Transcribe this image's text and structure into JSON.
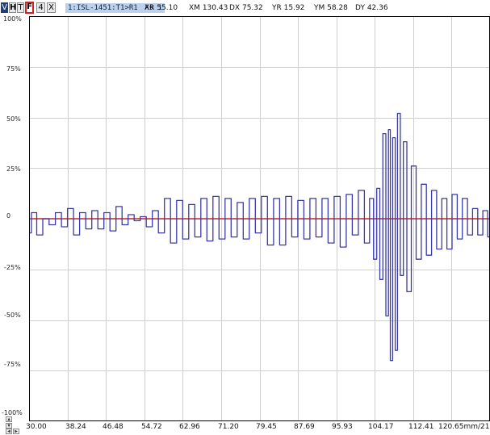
{
  "toolbar": {
    "btn_v": "V",
    "btn_h": "H",
    "btn_t": "T",
    "btn_f": "F",
    "btn_4": "4",
    "btn_x": "X",
    "channel_label": "1:ISL-1451:T1>R1",
    "channel_suffix": "As 1",
    "readouts": [
      {
        "label": "XR",
        "value": "55.10"
      },
      {
        "label": "XM",
        "value": "130.43"
      },
      {
        "label": "DX",
        "value": "75.32"
      },
      {
        "label": "YR",
        "value": "15.92"
      },
      {
        "label": "YM",
        "value": "58.28"
      },
      {
        "label": "DY",
        "value": "42.36"
      }
    ]
  },
  "colors": {
    "trace": "#3a3aa8",
    "baseline": "#d02828",
    "grid": "#cfcfcf",
    "frame": "#000000"
  },
  "nav_icons": [
    "arrow-up-icon",
    "arrow-down-icon",
    "arrow-left-icon",
    "arrow-right-icon"
  ],
  "chart_data": {
    "type": "line",
    "y_tick_labels": [
      "100%",
      "75%",
      "50%",
      "25%",
      "0",
      "-25%",
      "-50%",
      "-75%",
      "-100%"
    ],
    "x_tick_labels": [
      "30.00",
      "38.24",
      "46.48",
      "54.72",
      "62.96",
      "71.20",
      "79.45",
      "87.69",
      "95.93",
      "104.17",
      "112.41",
      "120.65mm/21"
    ],
    "xlim": [
      30.0,
      128.89
    ],
    "ylim": [
      -100,
      100
    ],
    "grid": true,
    "baseline": 0,
    "series": [
      {
        "x": [
          30.0,
          31.0,
          32.3,
          33.6,
          35.0,
          36.3,
          37.6,
          38.9,
          40.2,
          41.5,
          42.8,
          44.1,
          45.4,
          46.7,
          48.0,
          49.3,
          50.6,
          51.9,
          53.2,
          54.5,
          55.8,
          57.1,
          58.4,
          59.7,
          61.0,
          62.3,
          63.6,
          64.9,
          66.2,
          67.5,
          68.8,
          70.1,
          71.4,
          72.7,
          74.0,
          75.3,
          76.6,
          77.9,
          79.2,
          80.5,
          81.8,
          83.1,
          84.4,
          85.7,
          87.0,
          88.3,
          89.6,
          90.9,
          92.2,
          93.5,
          94.8,
          96.1,
          97.4,
          98.7,
          100.0,
          101.3,
          102.6,
          103.5,
          104.3,
          104.9,
          105.6,
          106.2,
          106.9,
          107.3,
          107.7,
          108.3,
          108.8,
          109.3,
          110.0,
          110.6,
          111.5,
          112.5,
          113.6,
          114.7,
          115.8,
          116.9,
          118.0,
          119.1,
          120.2,
          121.3,
          122.4,
          123.5,
          124.6,
          125.7,
          126.8,
          127.9,
          128.89
        ],
        "y": [
          -7,
          3,
          -8,
          0,
          -3,
          3,
          -4,
          5,
          -8,
          3,
          -5,
          4,
          -5,
          3,
          -6,
          6,
          -3,
          2,
          -1,
          1,
          -4,
          4,
          -7,
          10,
          -12,
          9,
          -10,
          7,
          -9,
          10,
          -11,
          11,
          -10,
          10,
          -9,
          8,
          -10,
          10,
          -7,
          11,
          -13,
          10,
          -13,
          11,
          -9,
          9,
          -10,
          10,
          -9,
          10,
          -12,
          11,
          -14,
          12,
          -8,
          14,
          -12,
          10,
          -20,
          15,
          -30,
          42,
          -48,
          44,
          -70,
          40,
          -65,
          52,
          -28,
          38,
          -36,
          26,
          -20,
          17,
          -18,
          14,
          -15,
          10,
          -15,
          12,
          -10,
          10,
          -8,
          5,
          -8,
          4,
          -9
        ]
      }
    ]
  }
}
